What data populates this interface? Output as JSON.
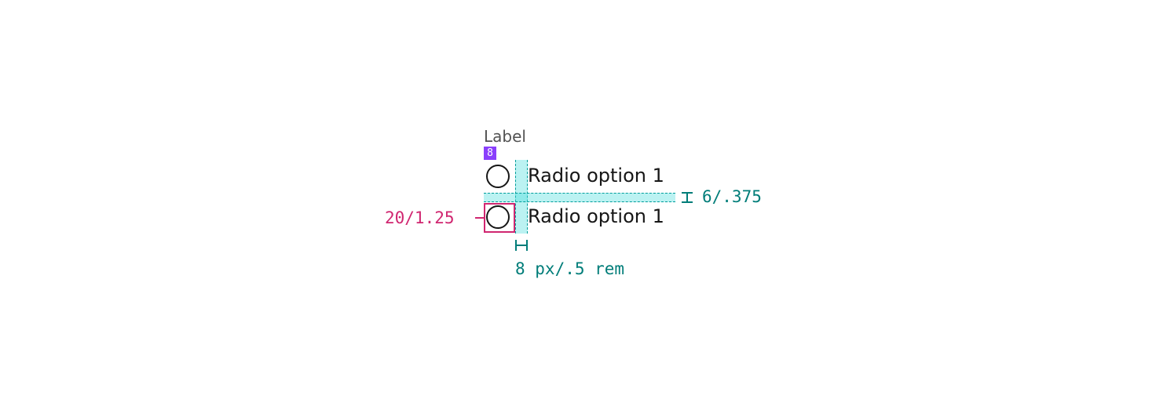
{
  "group_label": "Label",
  "badge_value": "8",
  "radio_options": [
    "Radio option 1",
    "Radio option 1"
  ],
  "annotations": {
    "vertical_spacing": "6/.375",
    "radio_size": "20/1.25",
    "horizontal_spacing": "8 px/.5 rem"
  },
  "colors": {
    "badge": "#8a3ffc",
    "spacing_teal": "#007d79",
    "size_magenta": "#d02670",
    "text": "#161616",
    "label_gray": "#525252"
  }
}
